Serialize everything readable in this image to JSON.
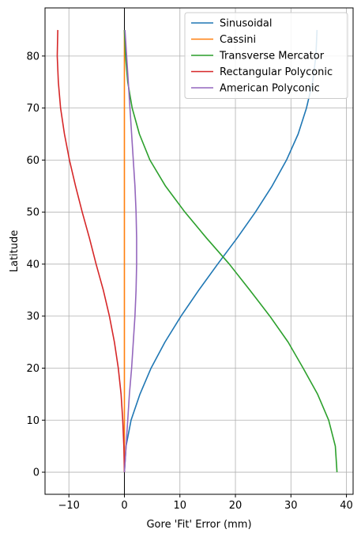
{
  "chart_data": {
    "type": "line",
    "xlabel": "Gore 'Fit' Error (mm)",
    "ylabel": "Latitude",
    "xlim": [
      -14.3,
      41.2
    ],
    "ylim": [
      -4.25,
      89.25
    ],
    "xticks": [
      -10,
      0,
      10,
      20,
      30,
      40
    ],
    "xtick_labels": [
      "−10",
      "0",
      "10",
      "20",
      "30",
      "40"
    ],
    "yticks": [
      0,
      10,
      20,
      30,
      40,
      50,
      60,
      70,
      80
    ],
    "ytick_labels": [
      "0",
      "10",
      "20",
      "30",
      "40",
      "50",
      "60",
      "70",
      "80"
    ],
    "grid": true,
    "zero_line": "x = 0",
    "legend_location": "upper right",
    "series": [
      {
        "name": "Sinusoidal",
        "color": "#1f77b4",
        "points": [
          [
            0,
            0
          ],
          [
            0.3,
            5
          ],
          [
            1.2,
            10
          ],
          [
            2.8,
            15
          ],
          [
            4.8,
            20
          ],
          [
            7.3,
            25
          ],
          [
            10.2,
            30
          ],
          [
            13.4,
            35
          ],
          [
            16.8,
            40
          ],
          [
            20.3,
            45
          ],
          [
            23.6,
            50
          ],
          [
            26.6,
            55
          ],
          [
            29.2,
            60
          ],
          [
            31.3,
            65
          ],
          [
            32.8,
            70
          ],
          [
            33.9,
            75
          ],
          [
            34.5,
            80
          ],
          [
            34.7,
            85
          ]
        ]
      },
      {
        "name": "Cassini",
        "color": "#ff7f0e",
        "points": [
          [
            0,
            0
          ],
          [
            0,
            10
          ],
          [
            0,
            20
          ],
          [
            0,
            30
          ],
          [
            0,
            40
          ],
          [
            0,
            50
          ],
          [
            0,
            60
          ],
          [
            0,
            70
          ],
          [
            0,
            80
          ],
          [
            0,
            85
          ]
        ]
      },
      {
        "name": "Transverse Mercator",
        "color": "#2ca02c",
        "points": [
          [
            38.3,
            0
          ],
          [
            38,
            5
          ],
          [
            36.8,
            10
          ],
          [
            34.8,
            15
          ],
          [
            32.2,
            20
          ],
          [
            29.5,
            25
          ],
          [
            26.2,
            30
          ],
          [
            22.6,
            35
          ],
          [
            18.9,
            40
          ],
          [
            14.8,
            45
          ],
          [
            10.9,
            50
          ],
          [
            7.4,
            55
          ],
          [
            4.6,
            60
          ],
          [
            2.7,
            65
          ],
          [
            1.4,
            70
          ],
          [
            0.6,
            75
          ],
          [
            0.2,
            80
          ],
          [
            0,
            85
          ]
        ]
      },
      {
        "name": "Rectangular Polyconic",
        "color": "#d62728",
        "points": [
          [
            0,
            0
          ],
          [
            -0.1,
            5
          ],
          [
            -0.3,
            10
          ],
          [
            -0.6,
            15
          ],
          [
            -1.1,
            20
          ],
          [
            -1.8,
            25
          ],
          [
            -2.7,
            30
          ],
          [
            -3.8,
            35
          ],
          [
            -5.1,
            40
          ],
          [
            -6.3,
            45
          ],
          [
            -7.6,
            50
          ],
          [
            -8.8,
            55
          ],
          [
            -9.9,
            60
          ],
          [
            -10.8,
            65
          ],
          [
            -11.5,
            70
          ],
          [
            -11.9,
            75
          ],
          [
            -12.1,
            80
          ],
          [
            -12,
            85
          ]
        ]
      },
      {
        "name": "American Polyconic",
        "color": "#9467bd",
        "points": [
          [
            0,
            0
          ],
          [
            0.3,
            5
          ],
          [
            0.6,
            10
          ],
          [
            0.9,
            15
          ],
          [
            1.3,
            20
          ],
          [
            1.6,
            25
          ],
          [
            1.9,
            30
          ],
          [
            2.1,
            35
          ],
          [
            2.2,
            40
          ],
          [
            2.2,
            45
          ],
          [
            2.1,
            50
          ],
          [
            1.9,
            55
          ],
          [
            1.6,
            60
          ],
          [
            1.3,
            65
          ],
          [
            1,
            70
          ],
          [
            0.7,
            75
          ],
          [
            0.4,
            80
          ],
          [
            0.1,
            85
          ]
        ]
      }
    ]
  }
}
